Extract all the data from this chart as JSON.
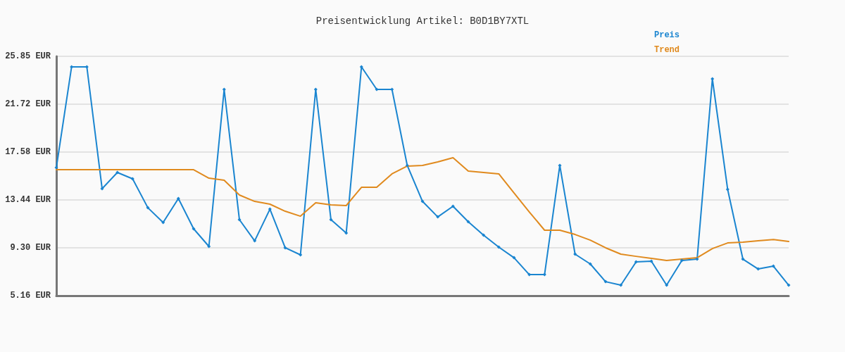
{
  "chart_data": {
    "type": "line",
    "title": "Preisentwicklung Artikel: B0D1BY7XTL",
    "categories": [
      null,
      null,
      null,
      null,
      null,
      null,
      null,
      null,
      null,
      null,
      null,
      null,
      null,
      null,
      null,
      null,
      null,
      null,
      null,
      null,
      null,
      null,
      null,
      null,
      null,
      null,
      null,
      null,
      null,
      null,
      null,
      null,
      null,
      null,
      null,
      null,
      null,
      null,
      null,
      null,
      null,
      null,
      null,
      null,
      null,
      null,
      null,
      null,
      null
    ],
    "series": [
      {
        "name": "Preis",
        "color": "#1a85d0",
        "marker": "diamond",
        "values": [
          16.23,
          24.94,
          24.94,
          14.41,
          15.81,
          15.26,
          12.76,
          11.49,
          13.56,
          10.94,
          9.42,
          22.99,
          11.73,
          9.9,
          12.64,
          9.3,
          8.69,
          22.99,
          11.73,
          10.57,
          24.94,
          22.99,
          22.99,
          16.42,
          13.31,
          11.97,
          12.89,
          11.55,
          10.39,
          9.36,
          8.44,
          6.98,
          6.98,
          16.42,
          8.75,
          7.9,
          6.37,
          6.07,
          8.08,
          8.14,
          6.07,
          8.2,
          8.32,
          23.9,
          14.35,
          8.32,
          7.47,
          7.71,
          6.07
        ]
      },
      {
        "name": "Trend",
        "color": "#e08a1e",
        "marker": "none",
        "values": [
          16.05,
          16.05,
          16.05,
          16.05,
          16.05,
          16.05,
          16.05,
          16.05,
          16.05,
          16.05,
          15.32,
          15.14,
          13.86,
          13.31,
          13.07,
          12.46,
          12.03,
          13.19,
          13.01,
          12.95,
          14.53,
          14.53,
          15.69,
          16.36,
          16.42,
          16.72,
          17.09,
          15.93,
          15.81,
          15.69,
          14.04,
          12.4,
          10.82,
          10.82,
          10.45,
          9.96,
          9.3,
          8.75,
          8.56,
          8.38,
          8.2,
          8.32,
          8.44,
          9.23,
          9.72,
          9.78,
          9.9,
          10.02,
          9.84
        ]
      }
    ],
    "ylim": [
      5.16,
      25.85
    ],
    "yticks": [
      {
        "value": 5.16,
        "label": "5.16 EUR"
      },
      {
        "value": 9.3,
        "label": "9.30 EUR"
      },
      {
        "value": 13.44,
        "label": "13.44 EUR"
      },
      {
        "value": 17.58,
        "label": "17.58 EUR"
      },
      {
        "value": 21.72,
        "label": "21.72 EUR"
      },
      {
        "value": 25.85,
        "label": "25.85 EUR"
      }
    ],
    "grid": "y",
    "legend": "top right",
    "line_style": "solid"
  }
}
